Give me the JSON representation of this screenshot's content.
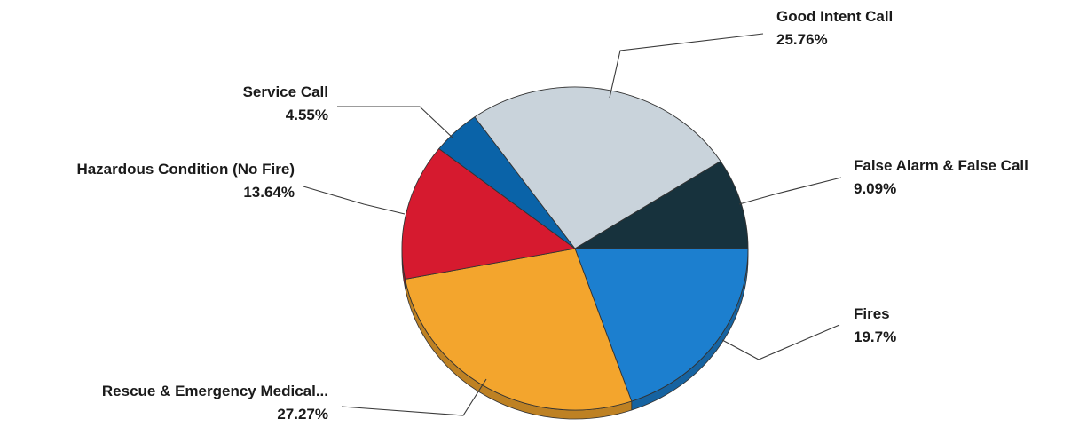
{
  "chart_data": {
    "type": "pie",
    "style": "3d-tilted",
    "series": [
      {
        "slices": [
          {
            "label": "Fires",
            "value_label": "19.7%",
            "value": 19.7,
            "color": "#1c7fcf"
          },
          {
            "label": "Rescue & Emergency Medical...",
            "value_label": "27.27%",
            "value": 27.27,
            "color": "#f3a52d"
          },
          {
            "label": "Hazardous Condition (No Fire)",
            "value_label": "13.64%",
            "value": 13.64,
            "color": "#d61a2f"
          },
          {
            "label": "Service Call",
            "value_label": "4.55%",
            "value": 4.55,
            "color": "#0a63a8"
          },
          {
            "label": "Good Intent Call",
            "value_label": "25.76%",
            "value": 25.76,
            "color": "#c9d3db"
          },
          {
            "label": "False Alarm & False Call",
            "value_label": "9.09%",
            "value": 9.09,
            "color": "#17323d"
          }
        ]
      }
    ],
    "legend": "none",
    "data_labels": "outside-with-leader-lines"
  }
}
